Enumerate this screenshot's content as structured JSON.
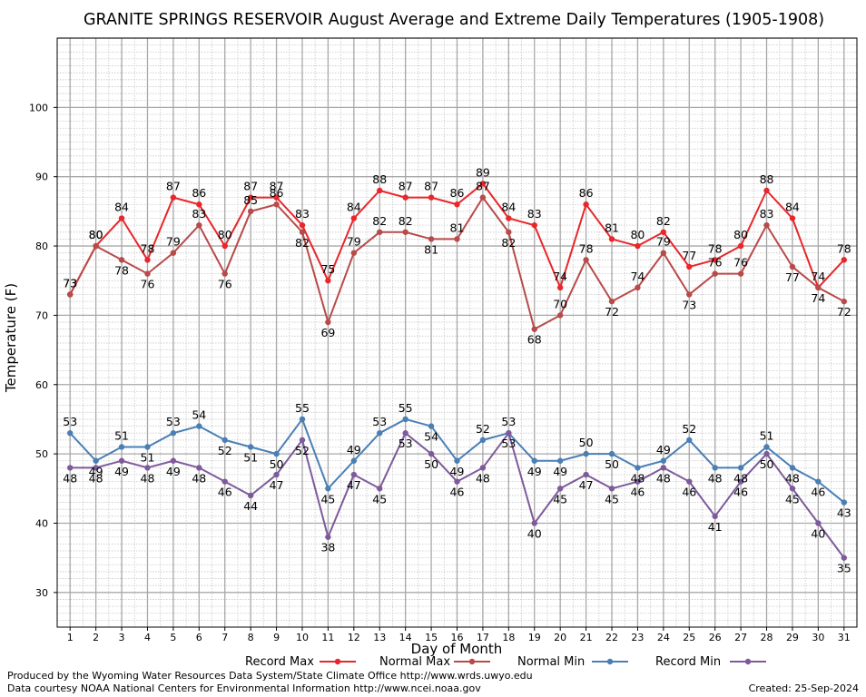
{
  "chart_data": {
    "type": "line",
    "title": "GRANITE SPRINGS RESERVOIR August Average and Extreme Daily Temperatures (1905-1908)",
    "xlabel": "Day of Month",
    "ylabel": "Temperature (F)",
    "x": [
      1,
      2,
      3,
      4,
      5,
      6,
      7,
      8,
      9,
      10,
      11,
      12,
      13,
      14,
      15,
      16,
      17,
      18,
      19,
      20,
      21,
      22,
      23,
      24,
      25,
      26,
      27,
      28,
      29,
      30,
      31
    ],
    "xlim": [
      0.5,
      31.5
    ],
    "ylim": [
      25,
      110
    ],
    "yticks": [
      30,
      40,
      50,
      60,
      70,
      80,
      90,
      100
    ],
    "grid": true,
    "legend": "bottom",
    "series": [
      {
        "name": "Record Max",
        "color": "#e8262b",
        "label_pos": "above",
        "values": [
          73,
          80,
          84,
          78,
          87,
          86,
          80,
          87,
          87,
          83,
          75,
          84,
          88,
          87,
          87,
          86,
          89,
          84,
          83,
          74,
          86,
          81,
          80,
          82,
          77,
          78,
          80,
          88,
          84,
          74,
          78
        ]
      },
      {
        "name": "Normal Max",
        "color": "#b84a4a",
        "label_pos": "mixed",
        "values": [
          73,
          80,
          78,
          76,
          79,
          83,
          76,
          85,
          86,
          82,
          69,
          79,
          82,
          82,
          81,
          81,
          87,
          82,
          68,
          70,
          78,
          72,
          74,
          79,
          73,
          76,
          76,
          83,
          77,
          74,
          72
        ]
      },
      {
        "name": "Normal Min",
        "color": "#4a7fb5",
        "label_pos": "mixed",
        "values": [
          53,
          49,
          51,
          51,
          53,
          54,
          52,
          51,
          50,
          55,
          45,
          49,
          53,
          55,
          54,
          49,
          52,
          53,
          49,
          49,
          50,
          50,
          48,
          49,
          52,
          48,
          48,
          51,
          48,
          46,
          43
        ]
      },
      {
        "name": "Record Min",
        "color": "#7e5a9b",
        "label_pos": "below",
        "values": [
          48,
          48,
          49,
          48,
          49,
          48,
          46,
          44,
          47,
          52,
          38,
          47,
          45,
          53,
          50,
          46,
          48,
          53,
          40,
          45,
          47,
          45,
          46,
          48,
          46,
          41,
          46,
          50,
          45,
          40,
          35
        ]
      }
    ]
  },
  "footer": {
    "credit_line1": "Produced by the Wyoming Water Resources Data System/State Climate Office http://www.wrds.uwyo.edu",
    "credit_line2": "Data courtesy NOAA National Centers for Environmental Information http://www.ncei.noaa.gov",
    "created": "Created:  25-Sep-2024"
  }
}
